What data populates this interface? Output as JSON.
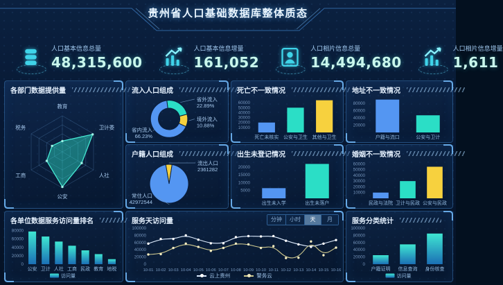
{
  "header": {
    "title": "贵州省人口基础数据库整体质态"
  },
  "kpis": [
    {
      "icon": "database-icon",
      "label": "人口基本信息总量",
      "value": "48,315,600"
    },
    {
      "icon": "trend-up-icon",
      "label": "人口基本信息增量",
      "value": "161,052"
    },
    {
      "icon": "photo-person-icon",
      "label": "人口相片信息总量",
      "value": "14,494,680"
    },
    {
      "icon": "trend-up-icon",
      "label": "人口相片信息增量",
      "value": "1,611"
    }
  ],
  "colors": {
    "blue": "#5496f2",
    "teal": "#2bdec6",
    "yellow": "#f7d13e",
    "grad_top": "#3fe6d2",
    "grad_bottom": "#1b6fb5"
  },
  "panels": {
    "dept_supply": {
      "title": "各部门数据提供量"
    },
    "inflow": {
      "title": "流入人口组成"
    },
    "household": {
      "title": "户籍人口组成"
    },
    "death": {
      "title": "死亡不一致情况"
    },
    "address": {
      "title": "地址不一致情况"
    },
    "birth": {
      "title": "出生未登记情况"
    },
    "marriage": {
      "title": "婚姻不一致情况"
    },
    "unit_rank": {
      "title": "各单位数据服务访问量排名"
    },
    "daily_visits": {
      "title": "服务天访问量",
      "tabs": [
        "分钟",
        "小时",
        "天",
        "月"
      ],
      "active_tab": "天"
    },
    "service_category": {
      "title": "服务分类统计"
    }
  },
  "chart_data": [
    {
      "id": "dept_supply",
      "type": "radar",
      "title": "各部门数据提供量",
      "categories": [
        "教育",
        "卫计委",
        "人社",
        "公安",
        "工商",
        "税务"
      ],
      "values": [
        0.3,
        0.97,
        0.62,
        0.97,
        0.5,
        0.33
      ],
      "max": 1,
      "grid_levels": 4,
      "fill": "rgba(46,224,200,0.45)",
      "stroke": "#46e8d2"
    },
    {
      "id": "inflow",
      "type": "pie",
      "variant": "donut",
      "title": "流入人口组成",
      "start_angle": -97,
      "slices": [
        {
          "label": "省外流入",
          "pct": "22.89%",
          "value": 22.89,
          "color": "#2bdec6",
          "side": "right"
        },
        {
          "label": "境外流入",
          "pct": "10.88%",
          "value": 10.88,
          "color": "#f7d13e",
          "side": "right"
        },
        {
          "label": "省内流入",
          "pct": "66.23%",
          "value": 66.23,
          "color": "#5496f2",
          "side": "left"
        }
      ]
    },
    {
      "id": "household",
      "type": "pie",
      "title": "户籍人口组成",
      "start_angle": -100,
      "slices": [
        {
          "label": "流出人口",
          "pct": "2361282",
          "value": 2361282,
          "color": "#f7d13e",
          "side": "right"
        },
        {
          "label": "常住人口",
          "pct": "42972544",
          "value": 42972544,
          "color": "#5496f2",
          "side": "left"
        }
      ]
    },
    {
      "id": "death",
      "type": "bar",
      "title": "死亡不一致情况",
      "categories": [
        "死亡未核实",
        "公安与卫生",
        "其他与卫生"
      ],
      "values": [
        20000,
        50000,
        65000
      ],
      "colors": [
        "#5496f2",
        "#2bdec6",
        "#f7d13e"
      ],
      "yticks": [
        10000,
        20000,
        30000,
        40000,
        50000,
        60000
      ],
      "ylim": [
        0,
        70000
      ]
    },
    {
      "id": "address",
      "type": "bar",
      "title": "地址不一致情况",
      "categories": [
        "户籍与流口",
        "公安与卫计"
      ],
      "values": [
        90000,
        47000
      ],
      "colors": [
        "#5496f2",
        "#2bdec6"
      ],
      "yticks": [
        20000,
        40000,
        60000,
        80000
      ],
      "ylim": [
        0,
        95000
      ]
    },
    {
      "id": "birth",
      "type": "bar",
      "title": "出生未登记情况",
      "categories": [
        "出生未入学",
        "出生未落户"
      ],
      "values": [
        6500,
        22000
      ],
      "colors": [
        "#5496f2",
        "#2bdec6"
      ],
      "yticks": [
        5000,
        10000,
        15000,
        20000
      ],
      "ylim": [
        0,
        23500
      ]
    },
    {
      "id": "marriage",
      "type": "bar",
      "title": "婚姻不一致情况",
      "categories": [
        "民政与法院",
        "卫计与民政",
        "公安与民政"
      ],
      "values": [
        10000,
        30000,
        55000
      ],
      "colors": [
        "#5496f2",
        "#2bdec6",
        "#f7d13e"
      ],
      "yticks": [
        10000,
        20000,
        30000,
        40000,
        50000,
        60000
      ],
      "ylim": [
        0,
        64000
      ]
    },
    {
      "id": "unit_rank",
      "type": "bar",
      "title": "各单位数据服务访问量排名",
      "categories": [
        "公安",
        "卫计",
        "人社",
        "工商",
        "民政",
        "教育",
        "地税"
      ],
      "values": [
        78000,
        66000,
        54000,
        44000,
        33000,
        24000,
        12000
      ],
      "gradient": true,
      "legend": "访问量",
      "yticks": [
        0,
        20000,
        40000,
        60000,
        80000
      ],
      "ylim": [
        0,
        86000
      ]
    },
    {
      "id": "daily_visits",
      "type": "line",
      "title": "服务天访问量",
      "x": [
        "10-01",
        "10-02",
        "10-03",
        "10-04",
        "10-05",
        "10-06",
        "10-07",
        "10-08",
        "10-09",
        "10-10",
        "10-11",
        "10-12",
        "10-13",
        "10-14",
        "10-15",
        "10-16"
      ],
      "yticks": [
        0,
        20000,
        40000,
        60000,
        80000,
        100000
      ],
      "ylim": [
        0,
        100000
      ],
      "series": [
        {
          "name": "云上贵州",
          "color": "#dceafc",
          "dot": "#ffffff",
          "values": [
            57000,
            70000,
            70000,
            80000,
            68000,
            58000,
            58000,
            75000,
            78000,
            77000,
            78000,
            65000,
            55000,
            48000,
            57000,
            67000
          ]
        },
        {
          "name": "警务云",
          "color": "#cfc98f",
          "dot": "#f3ecc0",
          "values": [
            27000,
            28000,
            45000,
            57000,
            48000,
            37000,
            45000,
            57000,
            55000,
            45000,
            50000,
            17000,
            18000,
            63000,
            25000,
            46000
          ]
        }
      ]
    },
    {
      "id": "service_category",
      "type": "bar",
      "title": "服务分类统计",
      "categories": [
        "户籍证明",
        "信息查询",
        "身份核查"
      ],
      "values": [
        25000,
        55000,
        85000
      ],
      "gradient": true,
      "legend": "访问量",
      "yticks": [
        0,
        20000,
        40000,
        60000,
        80000,
        100000
      ],
      "ylim": [
        0,
        100000
      ]
    }
  ]
}
